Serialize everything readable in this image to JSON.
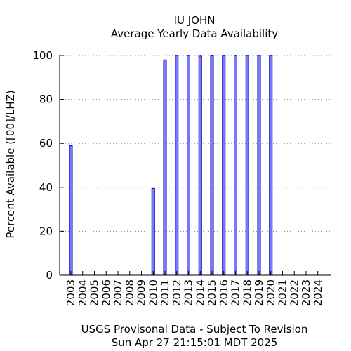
{
  "chart_data": {
    "type": "bar",
    "title": "IU JOHN",
    "subtitle": "Average Yearly Data Availability",
    "xlabel": "",
    "ylabel": "Percent Available ([00]/LHZ)",
    "footer": [
      "USGS Provisonal Data - Subject To Revision",
      "Sun Apr 27 21:15:01 MDT 2025"
    ],
    "ylim": [
      0,
      100
    ],
    "yticks": [
      0,
      20,
      40,
      60,
      80,
      100
    ],
    "grid": "y-dotted",
    "categories": [
      "2003",
      "2004",
      "2005",
      "2006",
      "2007",
      "2008",
      "2009",
      "2010",
      "2011",
      "2012",
      "2013",
      "2014",
      "2015",
      "2016",
      "2017",
      "2018",
      "2019",
      "2020",
      "2021",
      "2022",
      "2023",
      "2024"
    ],
    "values": [
      59,
      0,
      0,
      0,
      0,
      0,
      0,
      39.5,
      98,
      100,
      100,
      99.7,
      99.8,
      100,
      100,
      100,
      100,
      100,
      0,
      0,
      0,
      0
    ],
    "bar_color": "#7777ff",
    "bar_edge_color": "#0000aa"
  }
}
